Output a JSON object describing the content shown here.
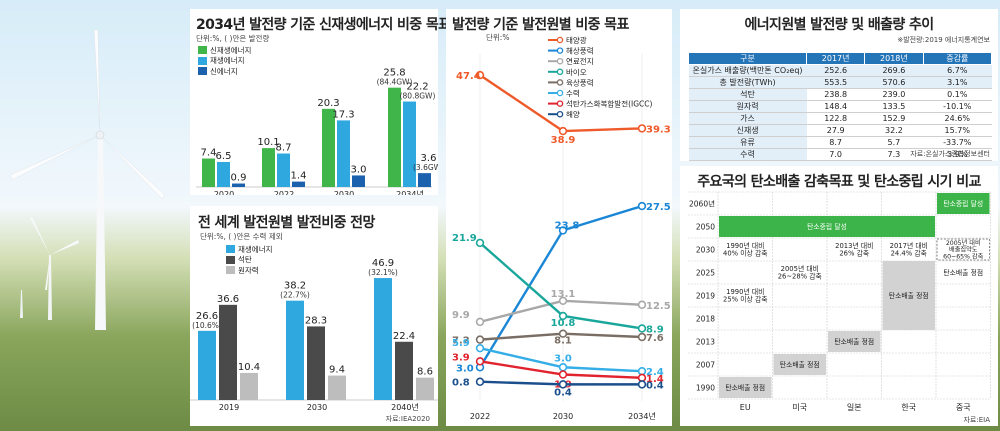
{
  "colors": {
    "green": "#3fb54a",
    "sky": "#2ea8df",
    "navy": "#1c61ad",
    "dark": "#4a4a4a",
    "grey": "#bdbdbd",
    "solar": "#ef5a2a",
    "offshore": "#1a86d6",
    "fuelcell": "#a8a8a8",
    "bio": "#1aa79b",
    "onshore": "#7a6e64",
    "hydro": "#35aee8",
    "lng": "#e1232e",
    "ocean": "#1b4f8c",
    "tableHead": "#2474b8",
    "tableSub": "#e3eff8",
    "carbon": "#3db449",
    "cell": "#d2d2d2"
  },
  "panel1": {
    "title": "2034년 발전량 기준 신재생에너지 비중 목표",
    "unit": "단위:%, ( )안은 발전량",
    "legend": [
      "신재생에너지",
      "재생에너지",
      "신에너지"
    ]
  },
  "panel2": {
    "title": "전 세계 발전원별 발전비중 전망",
    "unit": "단위:%, ( )안은 수력 제외",
    "legend": [
      "재생에너지",
      "석탄",
      "원자력"
    ],
    "source": "자료:IEA2020"
  },
  "panel3": {
    "title": "발전량 기준 발전원별 비중 목표",
    "unit": "단위:%"
  },
  "panel4": {
    "title": "에너지원별 발전량 및 배출량 추이",
    "note": "※발전량:2019 에너지통계연보",
    "headers": [
      "구분",
      "2017년",
      "2018년",
      "증감률"
    ],
    "rows": [
      {
        "label": "온실가스 배출량(백만톤 CO₂eq)",
        "y2017": "252.6",
        "y2018": "269.6",
        "rate": "6.7%"
      },
      {
        "label": "총 발전량(TWh)",
        "y2017": "553.5",
        "y2018": "570.6",
        "rate": "3.1%"
      },
      {
        "label": "석탄",
        "y2017": "238.8",
        "y2018": "239.0",
        "rate": "0.1%"
      },
      {
        "label": "원자력",
        "y2017": "148.4",
        "y2018": "133.5",
        "rate": "-10.1%"
      },
      {
        "label": "가스",
        "y2017": "122.8",
        "y2018": "152.9",
        "rate": "24.6%"
      },
      {
        "label": "신재생",
        "y2017": "27.9",
        "y2018": "32.2",
        "rate": "15.7%"
      },
      {
        "label": "유류",
        "y2017": "8.7",
        "y2018": "5.7",
        "rate": "-33.7%"
      },
      {
        "label": "수력",
        "y2017": "7.0",
        "y2018": "7.3",
        "rate": "3.9%"
      }
    ],
    "source": "자료:온실가스종합정보센터"
  },
  "panel5": {
    "title": "주요국의 탄소배출 감축목표 및 탄소중립 시기 비교",
    "years": [
      "2060년",
      "2050",
      "2030",
      "2025",
      "2019",
      "2018",
      "2013",
      "2007",
      "1990"
    ],
    "countries": [
      "EU",
      "미국",
      "일본",
      "한국",
      "중국"
    ],
    "cells": {
      "china_neutral": "탄소중립 달성",
      "neutral_2050": "탄소중립 달성",
      "eu_2030": "1990년 대비\n40% 이상 감축",
      "japan_2030": "2013년 대비\n26% 감축",
      "korea_2030": "2017년 대비\n24.4% 감축",
      "china_2030": "2005년 대비\n배출집약도\n60~65% 감축",
      "us_2025": "2005년 대비\n26~28% 감축",
      "china_2025": "탄소배출 정점",
      "eu_2019": "1990년 대비\n25% 이상 감축",
      "korea_peak": "탄소배출 정점",
      "japan_2013": "탄소배출 정점",
      "us_2007": "탄소배출 정점",
      "eu_1990": "탄소배출 정점"
    },
    "source": "자료:EIA"
  },
  "chart_data": [
    {
      "type": "bar",
      "title": "2034년 발전량 기준 신재생에너지 비중 목표",
      "categories": [
        "2020",
        "2022",
        "2030",
        "2034년"
      ],
      "ylim": [
        0,
        30
      ],
      "series": [
        {
          "name": "신재생에너지",
          "values": [
            7.4,
            10.1,
            20.3,
            25.8
          ]
        },
        {
          "name": "재생에너지",
          "values": [
            6.5,
            8.7,
            17.3,
            22.2
          ]
        },
        {
          "name": "신에너지",
          "values": [
            0.9,
            1.4,
            3.0,
            3.6
          ]
        }
      ],
      "value_labels": [
        [
          "7.4",
          "10.1",
          "20.3",
          "25.8"
        ],
        [
          "6.5",
          "8.7",
          "17.3",
          "22.2"
        ],
        [
          "0.9",
          "1.4",
          "3.0",
          "3.6"
        ]
      ],
      "annotations": [
        {
          "series": 0,
          "index": 3,
          "text": "(84.4GW)"
        },
        {
          "series": 1,
          "index": 3,
          "text": "(80.8GW)"
        },
        {
          "series": 2,
          "index": 3,
          "text": "(3.6GW)"
        }
      ]
    },
    {
      "type": "bar",
      "title": "전 세계 발전원별 발전비중 전망",
      "categories": [
        "2019",
        "2030",
        "2040년"
      ],
      "ylim": [
        0,
        50
      ],
      "series": [
        {
          "name": "재생에너지",
          "values": [
            26.6,
            38.2,
            46.9
          ]
        },
        {
          "name": "석탄",
          "values": [
            36.6,
            28.3,
            22.4
          ]
        },
        {
          "name": "원자력",
          "values": [
            10.4,
            9.4,
            8.6
          ]
        }
      ],
      "value_labels": [
        [
          "26.6",
          "38.2",
          "46.9"
        ],
        [
          "36.6",
          "28.3",
          "22.4"
        ],
        [
          "10.4",
          "9.4",
          "8.6"
        ]
      ],
      "annotations": [
        {
          "series": 0,
          "index": 0,
          "text": "(10.6%)"
        },
        {
          "series": 0,
          "index": 1,
          "text": "(22.7%)"
        },
        {
          "series": 0,
          "index": 2,
          "text": "(32.1%)"
        }
      ]
    },
    {
      "type": "line",
      "title": "발전량 기준 발전원별 비중 목표",
      "x": [
        "2022",
        "2030",
        "2034년"
      ],
      "ylim": [
        0,
        50
      ],
      "series": [
        {
          "name": "태양광",
          "values": [
            47.4,
            38.9,
            39.3
          ],
          "labels": [
            "47.4",
            "38.9",
            "39.3"
          ]
        },
        {
          "name": "해상풍력",
          "values": [
            3.0,
            23.8,
            27.5
          ],
          "labels": [
            "3.0",
            "23.8",
            "27.5"
          ]
        },
        {
          "name": "연료전지",
          "values": [
            9.9,
            13.1,
            12.5
          ],
          "labels": [
            "9.9",
            "13.1",
            "12.5"
          ]
        },
        {
          "name": "바이오",
          "values": [
            21.9,
            10.8,
            8.9
          ],
          "labels": [
            "21.9",
            "10.8",
            "8.9"
          ]
        },
        {
          "name": "육상풍력",
          "values": [
            7.2,
            8.1,
            7.6
          ],
          "labels": [
            "7.2",
            "8.1",
            "7.6"
          ]
        },
        {
          "name": "수력",
          "values": [
            5.9,
            3.0,
            2.4
          ],
          "labels": [
            "5.9",
            "3.0",
            "2.4"
          ]
        },
        {
          "name": "석탄가스화복합발전(IGCC)",
          "values": [
            3.9,
            1.9,
            1.4
          ],
          "labels": [
            "3.9",
            "1.9",
            "1.4"
          ]
        },
        {
          "name": "해양",
          "values": [
            0.8,
            0.4,
            0.4
          ],
          "labels": [
            "0.8",
            "0.4",
            "0.4"
          ]
        }
      ]
    }
  ]
}
